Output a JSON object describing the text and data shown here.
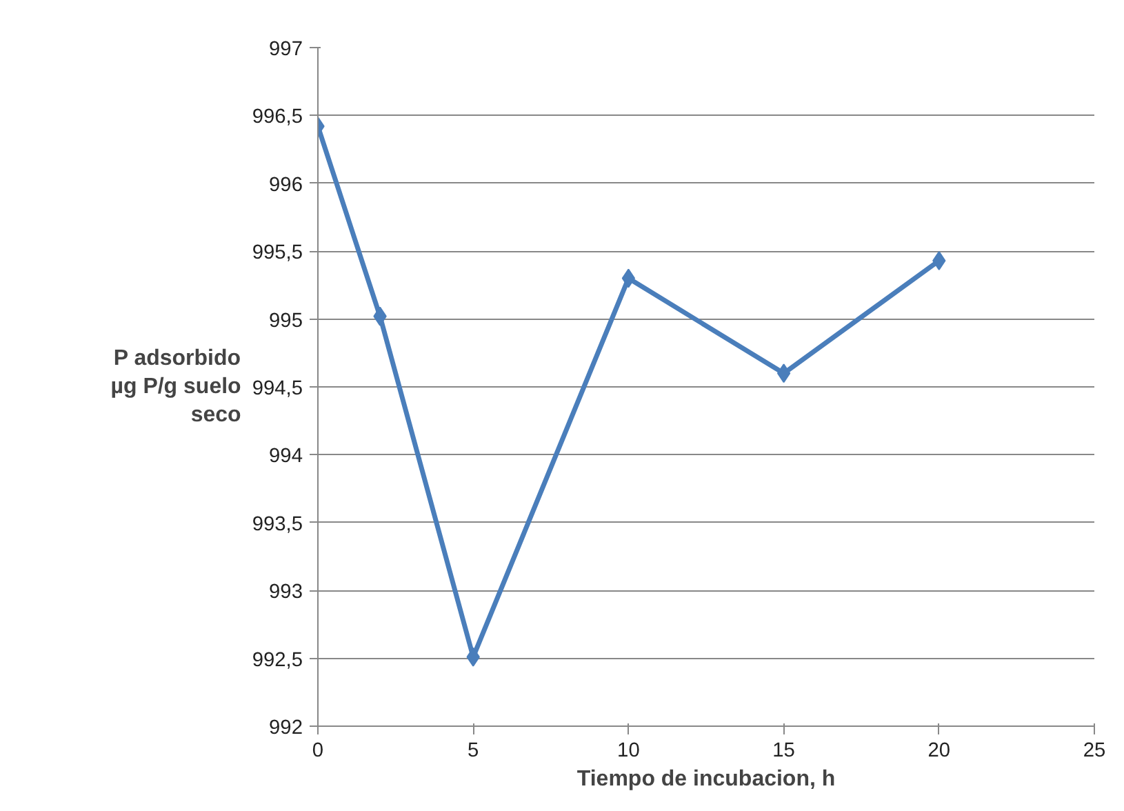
{
  "chart_data": {
    "type": "line",
    "xlabel": "Tiempo de incubacion, h",
    "ylabel": "P adsorbido\nµg P/g suelo\nseco",
    "x": [
      0,
      2,
      5,
      10,
      15,
      20
    ],
    "series": [
      {
        "color": "#4a7ebb",
        "values": [
          996.42,
          995.02,
          992.51,
          995.3,
          994.6,
          995.43
        ]
      }
    ],
    "xlim": [
      0,
      25
    ],
    "xticks": [
      0,
      5,
      10,
      15,
      20,
      25
    ],
    "ylim": [
      992,
      997
    ],
    "yticks": [
      992,
      {
        "value": 992.5,
        "label": "992,5"
      },
      993,
      {
        "value": 993.5,
        "label": "993,5"
      },
      994,
      {
        "value": 994.5,
        "label": "994,5"
      },
      995,
      {
        "value": 995.5,
        "label": "995,5"
      },
      996,
      {
        "value": 996.5,
        "label": "996,5"
      },
      997
    ],
    "grid": "y",
    "marker": "diamond",
    "line_style": "solid"
  }
}
